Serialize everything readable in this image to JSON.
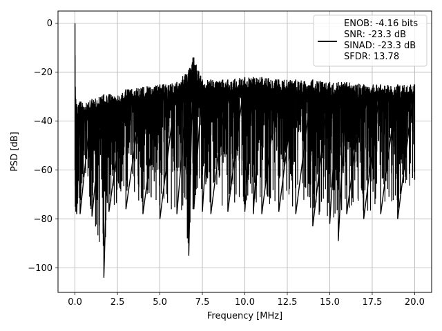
{
  "chart_data": {
    "type": "line",
    "title": "",
    "xlabel": "Frequency [MHz]",
    "ylabel": "PSD [dB]",
    "xlim": [
      -1.0,
      21.0
    ],
    "ylim": [
      -110,
      5
    ],
    "xticks": [
      0.0,
      2.5,
      5.0,
      7.5,
      10.0,
      12.5,
      15.0,
      17.5,
      20.0
    ],
    "xtick_labels": [
      "0.0",
      "2.5",
      "5.0",
      "7.5",
      "10.0",
      "12.5",
      "15.0",
      "17.5",
      "20.0"
    ],
    "yticks": [
      0,
      -20,
      -40,
      -60,
      -80,
      -100
    ],
    "ytick_labels": [
      "0",
      "−20",
      "−40",
      "−60",
      "−80",
      "−100"
    ],
    "grid": true,
    "legend_position": "upper right",
    "legend_entries": [
      "ENOB: -4.16 bits",
      "SNR: -23.3 dB",
      "SINAD: -23.3 dB",
      "SFDR: 13.78"
    ],
    "series": [
      {
        "color": "#000000",
        "x": [
          0.0,
          0.02,
          0.05,
          0.1,
          0.3,
          1.0,
          1.7,
          2.0,
          3.0,
          4.0,
          5.0,
          6.0,
          6.7,
          6.95,
          7.0,
          7.5,
          8.0,
          9.0,
          10.0,
          10.5,
          11.0,
          12.0,
          13.0,
          14.0,
          15.0,
          15.5,
          16.0,
          17.0,
          18.0,
          19.0,
          20.0
        ],
        "upper_db": [
          0,
          -26,
          -31,
          -33,
          -32,
          -31,
          -29,
          -29,
          -27,
          -26,
          -25,
          -24,
          -19,
          -14,
          -14,
          -23,
          -23,
          -23,
          -22,
          -22,
          -22,
          -23,
          -23,
          -23,
          -24,
          -24,
          -24,
          -25,
          -25,
          -25,
          -25
        ],
        "lower_db": [
          -60,
          -75,
          -77,
          -78,
          -78,
          -79,
          -104,
          -77,
          -76,
          -78,
          -80,
          -78,
          -95,
          -76,
          -76,
          -77,
          -78,
          -77,
          -77,
          -78,
          -78,
          -77,
          -78,
          -83,
          -82,
          -89,
          -78,
          -80,
          -78,
          -80,
          -64
        ]
      }
    ]
  }
}
